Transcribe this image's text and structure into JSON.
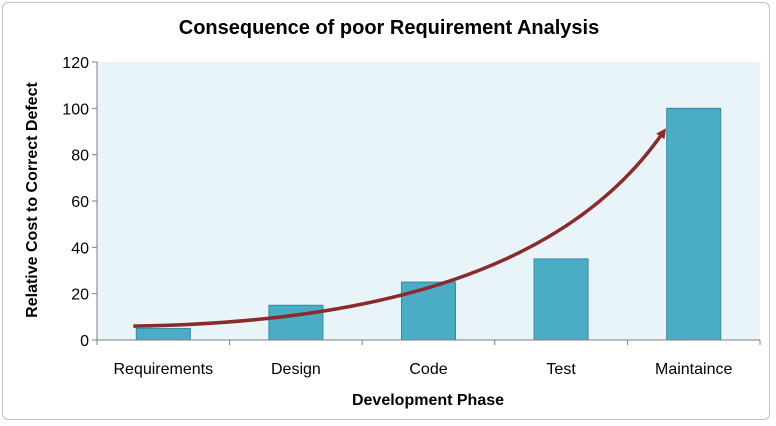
{
  "chart_data": {
    "type": "bar",
    "title": "Consequence of poor Requirement Analysis",
    "xlabel": "Development Phase",
    "ylabel": "Relative Cost to Correct Defect",
    "categories": [
      "Requirements",
      "Design",
      "Code",
      "Test",
      "Maintaince"
    ],
    "values": [
      5,
      15,
      25,
      35,
      100
    ],
    "ylim": [
      0,
      120
    ],
    "yticks": [
      "0",
      "20",
      "40",
      "60",
      "80",
      "100",
      "120"
    ],
    "grid": false,
    "legend": "none",
    "trend_arrow": {
      "type": "exponential-curve",
      "color": "#8b2a2a"
    },
    "colors": {
      "bar": "#4bacc6",
      "bar_edge": "#2f8ba3",
      "plot_bg": "#e8f4f8",
      "axis": "#7f7f7f"
    }
  }
}
